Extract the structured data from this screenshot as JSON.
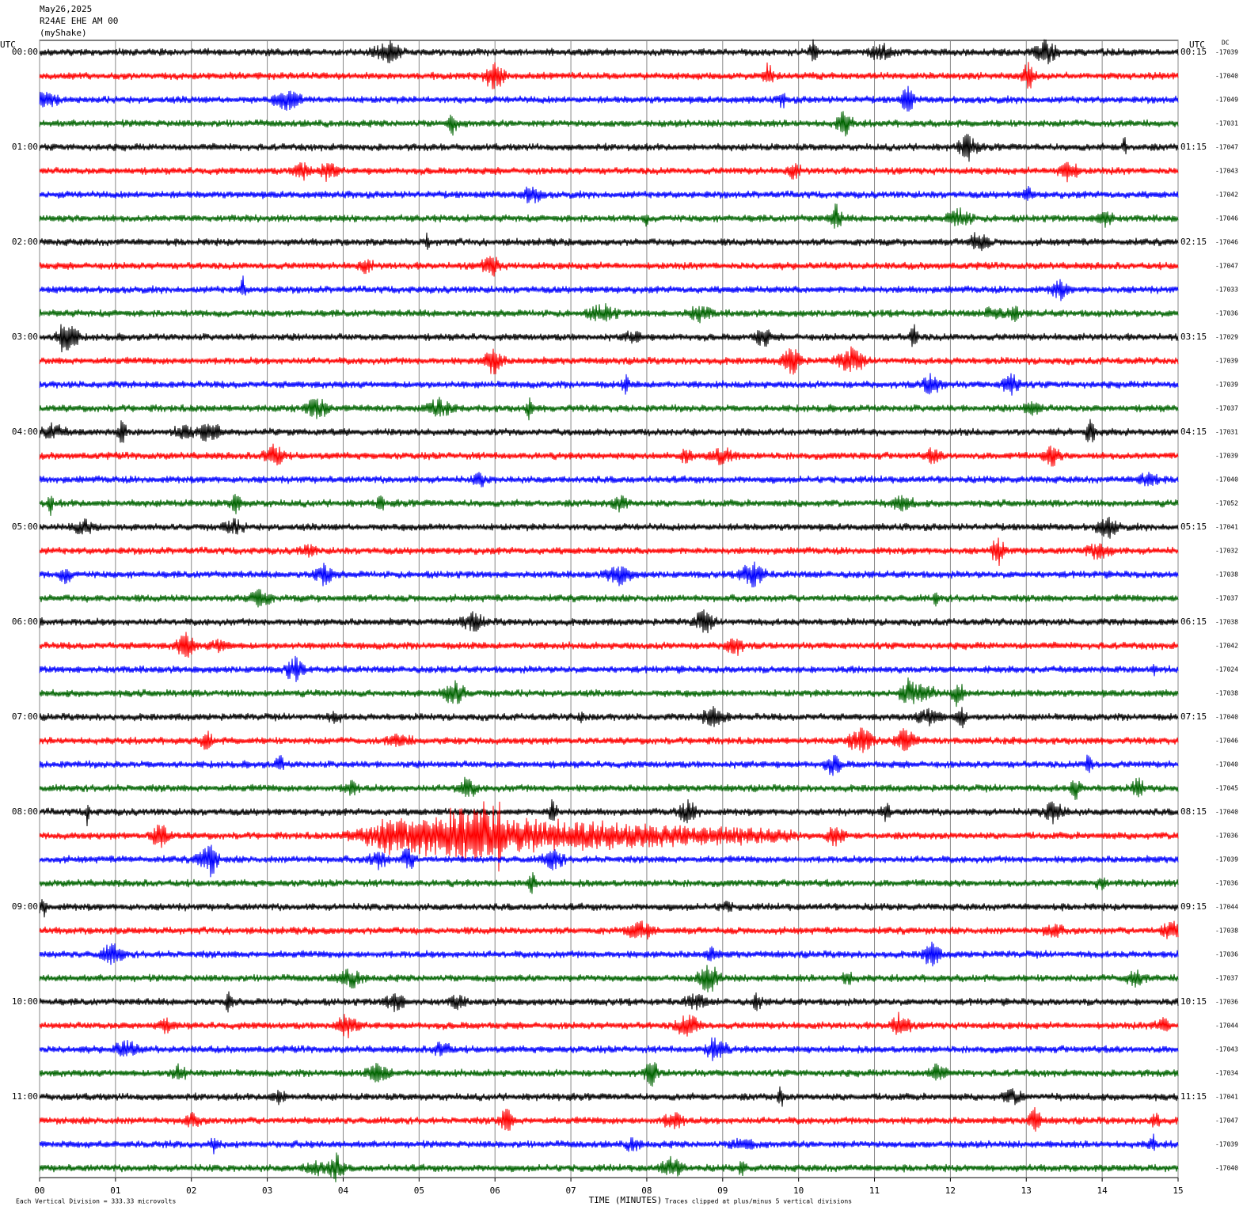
{
  "chart_data": {
    "type": "seismogram",
    "date": "May26,2025",
    "station": "R24AE EHE AM 00",
    "source": "(myShake)",
    "left_axis_label": "UTC",
    "right_axis_label": "UTC",
    "dc_label": "DC",
    "row_start_labels": [
      "00:00",
      "01:00",
      "02:00",
      "03:00",
      "04:00",
      "05:00",
      "06:00",
      "07:00",
      "08:00",
      "09:00",
      "10:00",
      "11:00"
    ],
    "row_end_labels": [
      "00:15",
      "01:15",
      "02:15",
      "03:15",
      "04:15",
      "05:15",
      "06:15",
      "07:15",
      "08:15",
      "09:15",
      "10:15",
      "11:15"
    ],
    "dc_values": [
      -17039,
      -17040,
      -17049,
      -17031,
      -17047,
      -17043,
      -17042,
      -17046,
      -17046,
      -17047,
      -17033,
      -17036,
      -17029,
      -17039,
      -17039,
      -17037,
      -17031,
      -17039,
      -17040,
      -17052,
      -17041,
      -17032,
      -17038,
      -17037,
      -17038,
      -17042,
      -17024,
      -17038,
      -17040,
      -17046,
      -17040,
      -17045,
      -17040,
      -17036,
      -17039,
      -17036,
      -17044,
      -17038,
      -17036,
      -17037,
      -17036,
      -17044,
      -17043,
      -17034,
      -17041,
      -17047,
      -17039,
      -17040
    ],
    "trace_colors": [
      "#000000",
      "#ff0000",
      "#0000ff",
      "#006400"
    ],
    "xlim": [
      0,
      15
    ],
    "xticks": [
      {
        "value": 0,
        "label": "00"
      },
      {
        "value": 1,
        "label": "01"
      },
      {
        "value": 2,
        "label": "02"
      },
      {
        "value": 3,
        "label": "03"
      },
      {
        "value": 4,
        "label": "04"
      },
      {
        "value": 5,
        "label": "05"
      },
      {
        "value": 6,
        "label": "06"
      },
      {
        "value": 7,
        "label": "07"
      },
      {
        "value": 8,
        "label": "08"
      },
      {
        "value": 9,
        "label": "09"
      },
      10,
      11,
      12,
      13,
      14,
      15
    ],
    "grid": true,
    "xlabel": "TIME (MINUTES)",
    "scale_note": "Each Vertical Division =  333.33 microvolts",
    "clip_note": "Traces clipped at plus/minus 5 vertical divisions"
  }
}
